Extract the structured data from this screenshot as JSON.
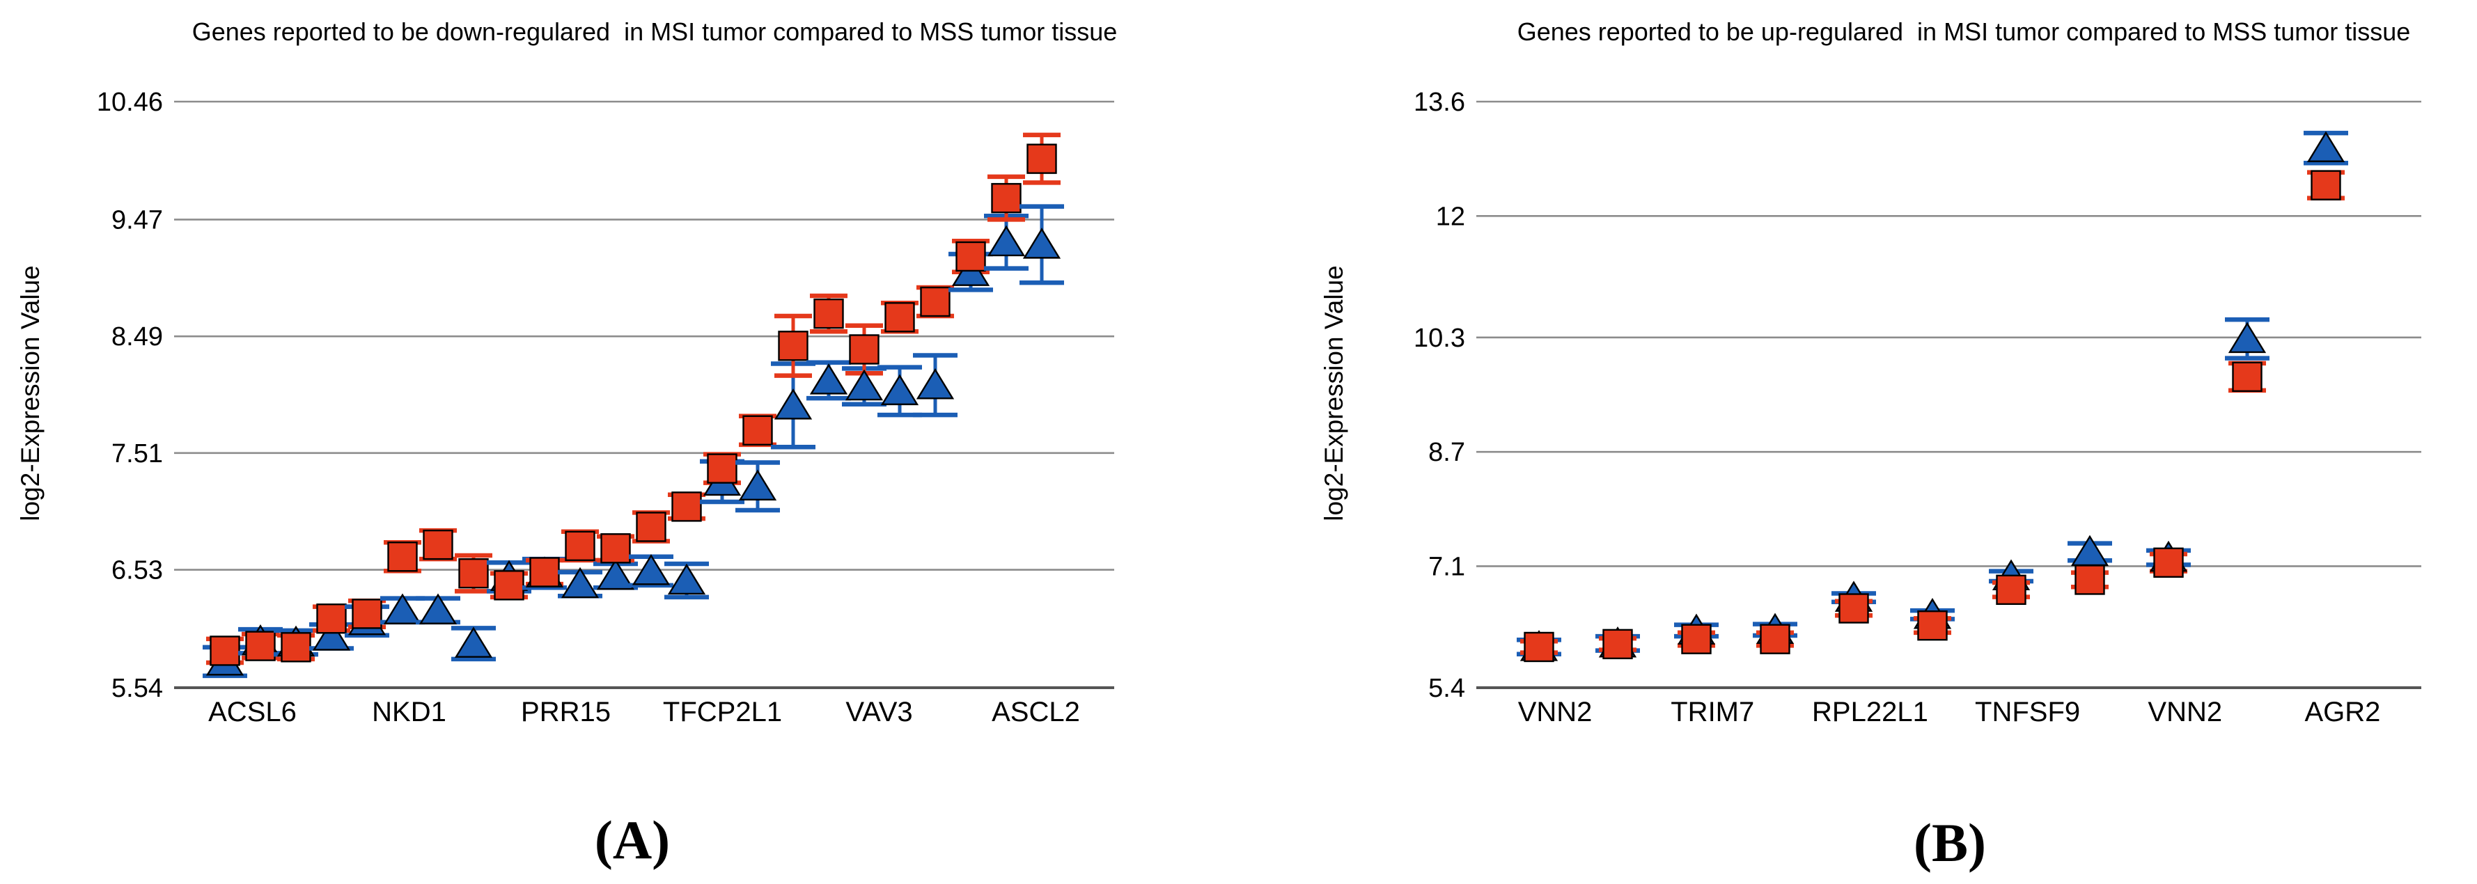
{
  "figure": {
    "caption_a": "(A)",
    "caption_b": "(B)"
  },
  "colors": {
    "red_series": "#E5391B",
    "blue_series": "#1B5EB5",
    "gridline": "#8c8c8c",
    "axis_line": "#555555",
    "text": "#000000"
  },
  "chart_data": [
    {
      "type": "scatter",
      "panel": "A",
      "title": "Genes reported to be down-regulared  in MSI tumor compared to MSS tumor tissue",
      "ylabel": "log2-Expression Value",
      "xlabel": "",
      "grid": true,
      "legend": "none",
      "ylim": [
        5.54,
        10.46
      ],
      "yticks": [
        {
          "label": "10.46",
          "value": 10.46
        },
        {
          "label": "9.47",
          "value": 9.47
        },
        {
          "label": "8.49",
          "value": 8.49
        },
        {
          "label": "7.51",
          "value": 7.51
        },
        {
          "label": "6.53",
          "value": 6.53
        },
        {
          "label": "5.54",
          "value": 5.54
        }
      ],
      "categories": [
        "ACSL6",
        "NKD1",
        "PRR15",
        "TFCP2L1",
        "VAV3",
        "ASCL2"
      ],
      "slots_per_category": [
        4,
        4,
        4,
        4,
        4,
        4
      ],
      "series": [
        {
          "name": "red-square",
          "marker": "square",
          "color": "#E5391B",
          "values": [
            5.85,
            5.89,
            5.88,
            6.12,
            6.16,
            6.64,
            6.74,
            6.5,
            6.4,
            6.51,
            6.73,
            6.71,
            6.89,
            7.06,
            7.38,
            7.7,
            8.41,
            8.68,
            8.38,
            8.65,
            8.78,
            9.16,
            9.65,
            9.98
          ],
          "errors": [
            0.1,
            0.1,
            0.1,
            0.1,
            0.11,
            0.12,
            0.12,
            0.15,
            0.1,
            0.1,
            0.12,
            0.1,
            0.12,
            0.1,
            0.12,
            0.12,
            0.25,
            0.15,
            0.2,
            0.12,
            0.12,
            0.13,
            0.18,
            0.2
          ]
        },
        {
          "name": "blue-triangle",
          "marker": "triangle",
          "color": "#1B5EB5",
          "values": [
            5.76,
            5.93,
            5.92,
            5.97,
            6.1,
            6.19,
            6.19,
            5.91,
            6.47,
            6.5,
            6.41,
            6.48,
            6.52,
            6.44,
            7.27,
            7.23,
            7.91,
            8.12,
            8.07,
            8.03,
            8.08,
            9.03,
            9.28,
            9.26
          ],
          "errors": [
            0.12,
            0.1,
            0.1,
            0.1,
            0.12,
            0.1,
            0.1,
            0.13,
            0.12,
            0.12,
            0.1,
            0.1,
            0.12,
            0.14,
            0.17,
            0.2,
            0.35,
            0.15,
            0.15,
            0.2,
            0.25,
            0.15,
            0.22,
            0.32
          ]
        }
      ]
    },
    {
      "type": "scatter",
      "panel": "B",
      "title": "Genes reported to be up-regulared  in MSI tumor compared to MSS tumor tissue",
      "ylabel": "log2-Expression Value",
      "xlabel": "",
      "grid": true,
      "legend": "none",
      "ylim": [
        5.4,
        13.6
      ],
      "yticks": [
        {
          "label": "13.6",
          "value": 13.6
        },
        {
          "label": "12",
          "value": 12
        },
        {
          "label": "10.3",
          "value": 10.3
        },
        {
          "label": "8.7",
          "value": 8.7
        },
        {
          "label": "7.1",
          "value": 7.1
        },
        {
          "label": "5.4",
          "value": 5.4
        }
      ],
      "categories": [
        "VNN2",
        "TRIM7",
        "RPL22L1",
        "TNFSF9",
        "VNN2",
        "AGR2"
      ],
      "slots_per_category": [
        2,
        2,
        2,
        2,
        2,
        1
      ],
      "series": [
        {
          "name": "red-square",
          "marker": "square",
          "color": "#E5391B",
          "values": [
            5.97,
            6.01,
            6.08,
            6.08,
            6.51,
            6.27,
            6.77,
            6.91,
            7.15,
            9.75,
            12.43
          ],
          "errors": [
            0.08,
            0.08,
            0.09,
            0.09,
            0.1,
            0.1,
            0.1,
            0.1,
            0.12,
            0.19,
            0.18
          ]
        },
        {
          "name": "blue-triangle",
          "marker": "triangle",
          "color": "#1B5EB5",
          "values": [
            5.97,
            6.02,
            6.2,
            6.21,
            6.66,
            6.42,
            6.96,
            7.3,
            7.22,
            10.28,
            12.95
          ],
          "errors": [
            0.1,
            0.1,
            0.08,
            0.08,
            0.06,
            0.06,
            0.07,
            0.12,
            0.1,
            0.27,
            0.21
          ]
        }
      ]
    }
  ]
}
